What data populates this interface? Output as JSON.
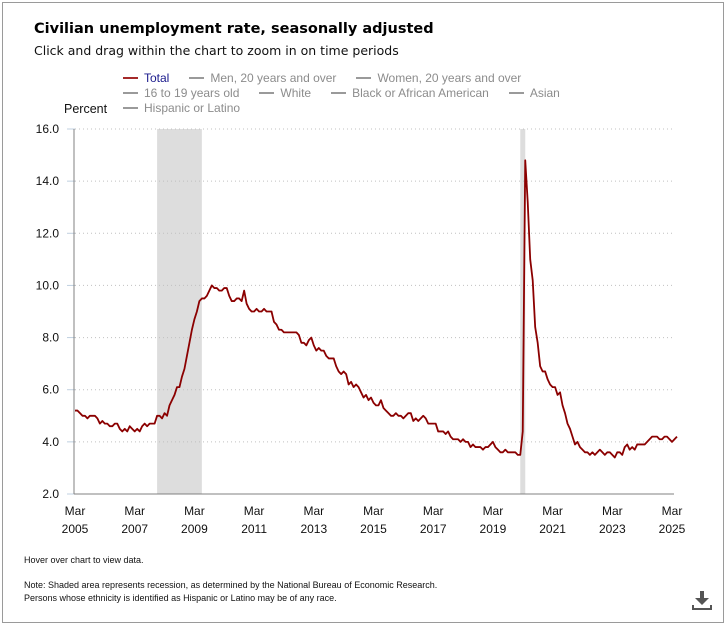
{
  "header": {
    "title": "Civilian unemployment rate, seasonally adjusted",
    "subtitle": "Click and drag within the chart to zoom in on time periods"
  },
  "legend": {
    "rows": [
      [
        {
          "label": "Total",
          "active": true
        },
        {
          "label": "Men, 20 years and over",
          "active": false
        },
        {
          "label": "Women, 20 years and over",
          "active": false
        }
      ],
      [
        {
          "label": "16 to 19 years old",
          "active": false
        },
        {
          "label": "White",
          "active": false
        },
        {
          "label": "Black or African American",
          "active": false
        },
        {
          "label": "Asian",
          "active": false
        }
      ],
      [
        {
          "label": "Hispanic or Latino",
          "active": false
        }
      ]
    ]
  },
  "footer": {
    "hover_text": "Hover over chart to view data.",
    "note_line1": "Note: Shaded area represents recession, as determined by the National Bureau of Economic Research.",
    "note_line2": "Persons whose ethnicity is identified as Hispanic or Latino may be of any race.",
    "download_icon": "download-icon"
  },
  "colors": {
    "series": "#8b0000",
    "recession": "#dddddd",
    "grid": "#c0c0c0",
    "axis": "#808080",
    "tick": "#c0d0e0"
  },
  "chart_data": {
    "type": "line",
    "title": "Civilian unemployment rate, seasonally adjusted",
    "ylabel": "Percent",
    "xlabel": "",
    "ylim": [
      2.0,
      16.0
    ],
    "yticks": [
      "2.0",
      "4.0",
      "6.0",
      "8.0",
      "10.0",
      "12.0",
      "14.0",
      "16.0"
    ],
    "xticks": [
      {
        "month": "Mar",
        "year": "2005"
      },
      {
        "month": "Mar",
        "year": "2007"
      },
      {
        "month": "Mar",
        "year": "2009"
      },
      {
        "month": "Mar",
        "year": "2011"
      },
      {
        "month": "Mar",
        "year": "2013"
      },
      {
        "month": "Mar",
        "year": "2015"
      },
      {
        "month": "Mar",
        "year": "2017"
      },
      {
        "month": "Mar",
        "year": "2019"
      },
      {
        "month": "Mar",
        "year": "2021"
      },
      {
        "month": "Mar",
        "year": "2023"
      },
      {
        "month": "Mar",
        "year": "2025"
      }
    ],
    "x_start": "2005-03",
    "x_end": "2025-03",
    "grid": true,
    "legend_position": "top",
    "recessions": [
      {
        "start": "2007-12",
        "end": "2009-06"
      },
      {
        "start": "2020-02",
        "end": "2020-04"
      }
    ],
    "series": [
      {
        "name": "Total",
        "start": "2005-03",
        "frequency": "monthly",
        "values": [
          5.2,
          5.2,
          5.1,
          5.0,
          5.0,
          4.9,
          5.0,
          5.0,
          5.0,
          4.9,
          4.7,
          4.8,
          4.7,
          4.7,
          4.6,
          4.6,
          4.7,
          4.7,
          4.5,
          4.4,
          4.5,
          4.4,
          4.6,
          4.5,
          4.4,
          4.5,
          4.4,
          4.6,
          4.7,
          4.6,
          4.7,
          4.7,
          4.7,
          5.0,
          5.0,
          4.9,
          5.1,
          5.0,
          5.4,
          5.6,
          5.8,
          6.1,
          6.1,
          6.5,
          6.8,
          7.3,
          7.8,
          8.3,
          8.7,
          9.0,
          9.4,
          9.5,
          9.5,
          9.6,
          9.8,
          10.0,
          9.9,
          9.9,
          9.8,
          9.8,
          9.9,
          9.9,
          9.6,
          9.4,
          9.4,
          9.5,
          9.5,
          9.4,
          9.8,
          9.3,
          9.1,
          9.0,
          9.0,
          9.1,
          9.0,
          9.0,
          9.1,
          9.0,
          9.0,
          9.0,
          8.6,
          8.5,
          8.3,
          8.3,
          8.2,
          8.2,
          8.2,
          8.2,
          8.2,
          8.2,
          8.1,
          7.8,
          7.8,
          7.7,
          7.9,
          8.0,
          7.7,
          7.5,
          7.6,
          7.5,
          7.5,
          7.3,
          7.2,
          7.2,
          7.2,
          6.9,
          6.7,
          6.6,
          6.7,
          6.6,
          6.2,
          6.3,
          6.1,
          6.2,
          6.1,
          5.9,
          5.7,
          5.8,
          5.6,
          5.7,
          5.5,
          5.4,
          5.4,
          5.6,
          5.3,
          5.2,
          5.1,
          5.0,
          5.0,
          5.1,
          5.0,
          5.0,
          4.9,
          5.0,
          5.1,
          5.1,
          4.8,
          4.9,
          4.8,
          4.9,
          5.0,
          4.9,
          4.7,
          4.7,
          4.7,
          4.7,
          4.4,
          4.4,
          4.4,
          4.3,
          4.4,
          4.2,
          4.1,
          4.1,
          4.1,
          4.0,
          4.1,
          4.0,
          4.0,
          3.8,
          3.9,
          3.8,
          3.8,
          3.8,
          3.7,
          3.8,
          3.8,
          3.9,
          4.0,
          3.8,
          3.7,
          3.6,
          3.6,
          3.7,
          3.6,
          3.6,
          3.6,
          3.6,
          3.5,
          3.5,
          4.4,
          14.8,
          13.2,
          11.0,
          10.2,
          8.4,
          7.8,
          6.9,
          6.7,
          6.7,
          6.4,
          6.2,
          6.1,
          6.1,
          5.8,
          5.9,
          5.4,
          5.1,
          4.7,
          4.5,
          4.2,
          3.9,
          4.0,
          3.8,
          3.7,
          3.6,
          3.6,
          3.5,
          3.6,
          3.5,
          3.6,
          3.7,
          3.6,
          3.5,
          3.6,
          3.6,
          3.5,
          3.4,
          3.6,
          3.6,
          3.5,
          3.8,
          3.9,
          3.7,
          3.8,
          3.7,
          3.9,
          3.9,
          3.9,
          3.9,
          4.0,
          4.1,
          4.2,
          4.2,
          4.2,
          4.1,
          4.1,
          4.2,
          4.2,
          4.1,
          4.0,
          4.1,
          4.2
        ]
      }
    ]
  }
}
